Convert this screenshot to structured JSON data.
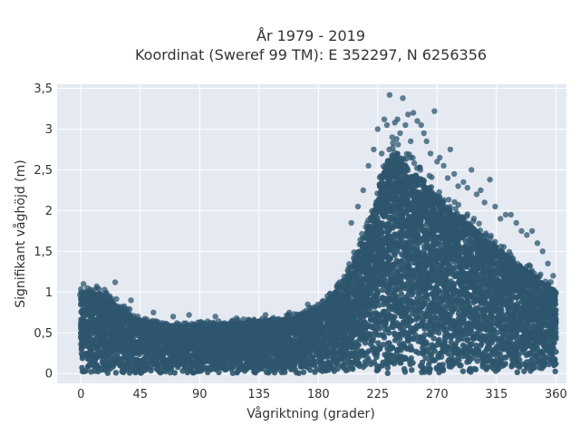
{
  "chart_data": {
    "type": "scatter",
    "title_line1": "År 1979 - 2019",
    "title_line2": "Koordinat (Sweref 99 TM): E 352297, N 6256356",
    "xlabel": "Vågriktning (grader)",
    "ylabel": "Signifikant våghöjd (m)",
    "xlim": [
      -18,
      368
    ],
    "ylim": [
      -0.12,
      3.55
    ],
    "xticks": [
      0,
      45,
      90,
      135,
      180,
      225,
      270,
      315,
      360
    ],
    "xtick_labels": [
      "0",
      "45",
      "90",
      "135",
      "180",
      "225",
      "270",
      "315",
      "360"
    ],
    "yticks": [
      0,
      0.5,
      1,
      1.5,
      2,
      2.5,
      3,
      3.5
    ],
    "ytick_labels": [
      "0",
      "0,5",
      "1",
      "1,5",
      "2",
      "2,5",
      "3",
      "3,5"
    ],
    "grid": true,
    "point_color": "#2e566e",
    "background_color": "#e5e9f2",
    "envelope": {
      "x": [
        0,
        10,
        20,
        30,
        45,
        60,
        75,
        90,
        105,
        120,
        135,
        150,
        165,
        180,
        190,
        200,
        210,
        220,
        225,
        230,
        235,
        240,
        245,
        250,
        255,
        260,
        270,
        280,
        290,
        300,
        315,
        330,
        345,
        360
      ],
      "y": [
        1.0,
        1.0,
        0.95,
        0.8,
        0.65,
        0.6,
        0.58,
        0.6,
        0.6,
        0.62,
        0.65,
        0.65,
        0.7,
        0.8,
        0.95,
        1.15,
        1.5,
        1.9,
        2.2,
        2.5,
        2.7,
        2.7,
        2.6,
        2.5,
        2.45,
        2.35,
        2.2,
        2.05,
        1.9,
        1.75,
        1.55,
        1.35,
        1.2,
        1.0
      ]
    },
    "outliers": {
      "x": [
        2,
        5,
        12,
        18,
        26,
        38,
        55,
        70,
        82,
        102,
        118,
        140,
        158,
        172,
        195,
        205,
        210,
        214,
        218,
        222,
        225,
        228,
        230,
        232,
        234,
        236,
        238,
        240,
        242,
        244,
        246,
        248,
        250,
        252,
        255,
        258,
        260,
        262,
        265,
        268,
        270,
        272,
        275,
        278,
        280,
        283,
        286,
        290,
        293,
        296,
        300,
        303,
        306,
        310,
        314,
        318,
        322,
        326,
        330,
        334,
        338,
        342,
        346,
        350,
        354,
        358
      ],
      "y": [
        1.1,
        1.05,
        1.07,
        1.03,
        1.12,
        0.9,
        0.75,
        0.7,
        0.72,
        0.7,
        0.68,
        0.72,
        0.75,
        0.85,
        1.1,
        1.85,
        2.05,
        2.25,
        2.55,
        2.75,
        3.0,
        2.7,
        3.12,
        3.05,
        3.42,
        2.9,
        3.08,
        3.12,
        2.95,
        3.38,
        3.05,
        3.18,
        2.85,
        3.2,
        3.1,
        3.05,
        2.95,
        2.85,
        2.7,
        3.22,
        2.6,
        2.65,
        2.55,
        2.4,
        2.75,
        2.45,
        2.3,
        2.35,
        2.28,
        2.5,
        2.2,
        2.25,
        2.1,
        2.38,
        2.05,
        1.9,
        1.95,
        1.95,
        1.85,
        1.75,
        1.7,
        1.75,
        1.6,
        1.5,
        1.35,
        1.2
      ]
    }
  }
}
